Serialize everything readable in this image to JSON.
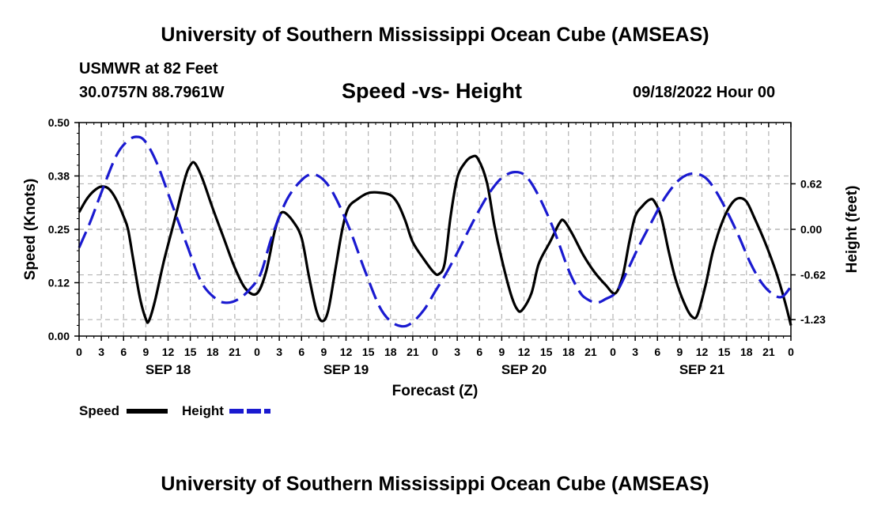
{
  "header": {
    "title": "University of Southern Mississippi Ocean Cube (AMSEAS)",
    "station": "USMWR at 82 Feet",
    "coords": "30.0757N  88.7961W",
    "subtitle": "Speed -vs- Height",
    "datetime": "09/18/2022 Hour 00"
  },
  "footer": {
    "title": "University of Southern Mississippi Ocean Cube (AMSEAS)"
  },
  "colors": {
    "speed": "#000000",
    "height": "#1a1ad0",
    "grid": "#b4b4b4"
  },
  "chart_data": {
    "type": "line",
    "title": "Speed -vs- Height",
    "xlabel": "Forecast (Z)",
    "ylabel": "Speed (Knots)",
    "y2label": "Height (feet)",
    "xlim": [
      0,
      96
    ],
    "ylim": [
      0,
      0.5
    ],
    "y2lim": [
      -1.454,
      1.454
    ],
    "x_tick_step": 3,
    "x_tick_labels": [
      "0",
      "3",
      "6",
      "9",
      "12",
      "15",
      "18",
      "21",
      "0",
      "3",
      "6",
      "9",
      "12",
      "15",
      "18",
      "21",
      "0",
      "3",
      "6",
      "9",
      "12",
      "15",
      "18",
      "21",
      "0",
      "3",
      "6",
      "9",
      "12",
      "15",
      "18",
      "21",
      "0"
    ],
    "y_tick_labels": [
      "0.00",
      "0.12",
      "0.25",
      "0.38",
      "0.50"
    ],
    "y_tick_values": [
      0.0,
      0.125,
      0.25,
      0.375,
      0.5
    ],
    "y2_tick_labels": [
      "-1.23",
      "-0.62",
      "0.00",
      "0.62"
    ],
    "y2_tick_values": [
      -1.23,
      -0.62,
      0.0,
      0.62
    ],
    "day_labels": [
      {
        "hour": 12,
        "label": "SEP 18"
      },
      {
        "hour": 36,
        "label": "SEP 19"
      },
      {
        "hour": 60,
        "label": "SEP 20"
      },
      {
        "hour": 84,
        "label": "SEP 21"
      }
    ],
    "series": [
      {
        "name": "Speed",
        "axis": "left",
        "style": "solid",
        "points": [
          [
            0,
            0.29
          ],
          [
            1,
            0.32
          ],
          [
            2,
            0.34
          ],
          [
            3,
            0.35
          ],
          [
            4,
            0.345
          ],
          [
            5,
            0.32
          ],
          [
            6,
            0.28
          ],
          [
            6.6,
            0.25
          ],
          [
            7.3,
            0.18
          ],
          [
            8.2,
            0.09
          ],
          [
            9,
            0.04
          ],
          [
            9.4,
            0.035
          ],
          [
            10.2,
            0.08
          ],
          [
            11.5,
            0.18
          ],
          [
            13,
            0.28
          ],
          [
            14.3,
            0.37
          ],
          [
            15,
            0.4
          ],
          [
            15.6,
            0.405
          ],
          [
            16.6,
            0.37
          ],
          [
            18,
            0.3
          ],
          [
            19.5,
            0.23
          ],
          [
            21,
            0.16
          ],
          [
            22.5,
            0.11
          ],
          [
            24,
            0.1
          ],
          [
            25.2,
            0.15
          ],
          [
            26.3,
            0.24
          ],
          [
            27,
            0.28
          ],
          [
            27.6,
            0.29
          ],
          [
            28.8,
            0.27
          ],
          [
            30,
            0.23
          ],
          [
            31,
            0.14
          ],
          [
            32,
            0.06
          ],
          [
            32.8,
            0.035
          ],
          [
            33.6,
            0.06
          ],
          [
            34.6,
            0.16
          ],
          [
            35.5,
            0.25
          ],
          [
            36.3,
            0.3
          ],
          [
            37.5,
            0.32
          ],
          [
            39,
            0.335
          ],
          [
            40.5,
            0.336
          ],
          [
            42,
            0.33
          ],
          [
            43,
            0.31
          ],
          [
            44,
            0.27
          ],
          [
            45,
            0.22
          ],
          [
            46.5,
            0.18
          ],
          [
            47.8,
            0.15
          ],
          [
            48.5,
            0.145
          ],
          [
            49.3,
            0.17
          ],
          [
            50.1,
            0.28
          ],
          [
            51,
            0.37
          ],
          [
            52,
            0.405
          ],
          [
            53,
            0.42
          ],
          [
            53.8,
            0.415
          ],
          [
            55,
            0.36
          ],
          [
            56,
            0.26
          ],
          [
            57,
            0.18
          ],
          [
            58.2,
            0.1
          ],
          [
            59,
            0.065
          ],
          [
            59.7,
            0.06
          ],
          [
            61,
            0.1
          ],
          [
            62,
            0.17
          ],
          [
            63.5,
            0.22
          ],
          [
            64.8,
            0.265
          ],
          [
            65.4,
            0.27
          ],
          [
            66.5,
            0.24
          ],
          [
            68,
            0.19
          ],
          [
            69.5,
            0.15
          ],
          [
            71,
            0.12
          ],
          [
            72.3,
            0.1
          ],
          [
            73.3,
            0.14
          ],
          [
            74.2,
            0.22
          ],
          [
            75,
            0.28
          ],
          [
            76,
            0.305
          ],
          [
            77,
            0.32
          ],
          [
            77.6,
            0.315
          ],
          [
            78.5,
            0.28
          ],
          [
            79.5,
            0.2
          ],
          [
            80.5,
            0.13
          ],
          [
            81.8,
            0.07
          ],
          [
            82.7,
            0.045
          ],
          [
            83.4,
            0.05
          ],
          [
            84.5,
            0.12
          ],
          [
            85.5,
            0.2
          ],
          [
            86.8,
            0.27
          ],
          [
            88,
            0.31
          ],
          [
            89,
            0.323
          ],
          [
            90,
            0.315
          ],
          [
            91,
            0.28
          ],
          [
            92.5,
            0.22
          ],
          [
            94,
            0.15
          ],
          [
            95.2,
            0.08
          ],
          [
            96,
            0.025
          ]
        ]
      },
      {
        "name": "Height",
        "axis": "right",
        "style": "dashed",
        "points": [
          [
            0,
            -0.25
          ],
          [
            1.5,
            0.1
          ],
          [
            3,
            0.5
          ],
          [
            5,
            1.0
          ],
          [
            6.5,
            1.2
          ],
          [
            7.7,
            1.26
          ],
          [
            8.9,
            1.2
          ],
          [
            10.5,
            0.9
          ],
          [
            12.5,
            0.35
          ],
          [
            14.5,
            -0.2
          ],
          [
            16.5,
            -0.72
          ],
          [
            18.5,
            -0.95
          ],
          [
            20,
            -1.0
          ],
          [
            21.5,
            -0.95
          ],
          [
            23,
            -0.82
          ],
          [
            24.5,
            -0.6
          ],
          [
            26,
            -0.1
          ],
          [
            28,
            0.4
          ],
          [
            30,
            0.67
          ],
          [
            31.5,
            0.75
          ],
          [
            33,
            0.67
          ],
          [
            34.5,
            0.45
          ],
          [
            36.5,
            0.0
          ],
          [
            38.5,
            -0.55
          ],
          [
            40.5,
            -1.05
          ],
          [
            42,
            -1.25
          ],
          [
            43.5,
            -1.32
          ],
          [
            44.8,
            -1.28
          ],
          [
            46.5,
            -1.1
          ],
          [
            48,
            -0.85
          ],
          [
            49.5,
            -0.6
          ],
          [
            51,
            -0.32
          ],
          [
            52.5,
            -0.02
          ],
          [
            54,
            0.27
          ],
          [
            55.5,
            0.52
          ],
          [
            57,
            0.7
          ],
          [
            58.7,
            0.78
          ],
          [
            60.3,
            0.72
          ],
          [
            62,
            0.45
          ],
          [
            64,
            0.0
          ],
          [
            66,
            -0.55
          ],
          [
            67.5,
            -0.85
          ],
          [
            68.5,
            -0.95
          ],
          [
            69.8,
            -1.0
          ],
          [
            71,
            -0.95
          ],
          [
            72.5,
            -0.85
          ],
          [
            74,
            -0.55
          ],
          [
            75.5,
            -0.23
          ],
          [
            77,
            0.06
          ],
          [
            79,
            0.43
          ],
          [
            81,
            0.68
          ],
          [
            82.8,
            0.76
          ],
          [
            84.5,
            0.7
          ],
          [
            86,
            0.5
          ],
          [
            87.5,
            0.22
          ],
          [
            89,
            -0.1
          ],
          [
            90.5,
            -0.45
          ],
          [
            92,
            -0.72
          ],
          [
            93.5,
            -0.88
          ],
          [
            94.8,
            -0.92
          ],
          [
            96,
            -0.78
          ]
        ]
      }
    ],
    "legend": [
      {
        "label": "Speed",
        "style": "solid"
      },
      {
        "label": "Height",
        "style": "dashed"
      }
    ],
    "legend_position": "bottom-left"
  }
}
